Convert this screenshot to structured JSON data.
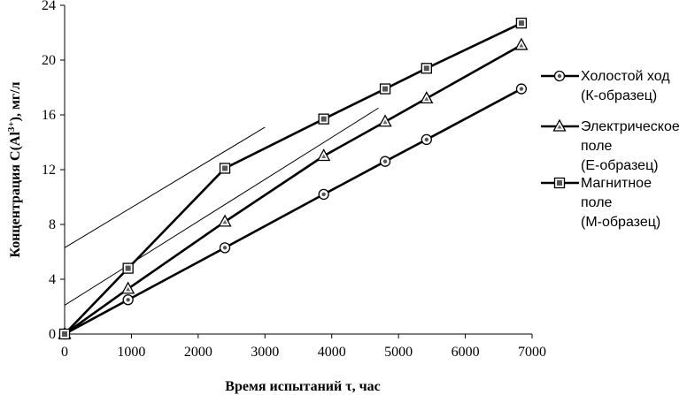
{
  "chart_data": {
    "type": "line",
    "xlabel": "Время испытаний τ, час",
    "ylabel_main": "Концентрация C(Al",
    "ylabel_sup": "3+",
    "ylabel_tail": "), мг/л",
    "xlim": [
      0,
      7000
    ],
    "ylim": [
      0,
      24
    ],
    "xticks": [
      0,
      1000,
      2000,
      3000,
      4000,
      5000,
      6000,
      7000
    ],
    "yticks": [
      0,
      4,
      8,
      12,
      16,
      20,
      24
    ],
    "grid": false,
    "legend_position": "right",
    "series": [
      {
        "marker": "circle",
        "legend_lines": [
          "Холостой ход",
          "(К-образец)"
        ],
        "x": [
          0,
          950,
          2400,
          3880,
          4800,
          5420,
          6840
        ],
        "y": [
          0,
          2.5,
          6.3,
          10.2,
          12.6,
          14.2,
          17.9
        ]
      },
      {
        "marker": "triangle",
        "legend_lines": [
          "Электрическое",
          "поле",
          "(Е-образец)"
        ],
        "x": [
          0,
          950,
          2400,
          3880,
          4800,
          5420,
          6840
        ],
        "y": [
          0,
          3.3,
          8.2,
          13.0,
          15.5,
          17.2,
          21.1
        ]
      },
      {
        "marker": "square",
        "legend_lines": [
          "Магнитное",
          "поле",
          "(М-образец)"
        ],
        "x": [
          0,
          950,
          2400,
          3880,
          4800,
          5420,
          6840
        ],
        "y": [
          0,
          4.8,
          12.1,
          15.7,
          17.9,
          19.4,
          22.7
        ]
      }
    ],
    "tangent_lines": [
      {
        "x": [
          0,
          3000
        ],
        "y": [
          6.3,
          15.1
        ]
      },
      {
        "x": [
          0,
          4700
        ],
        "y": [
          2.1,
          16.5
        ]
      }
    ]
  }
}
